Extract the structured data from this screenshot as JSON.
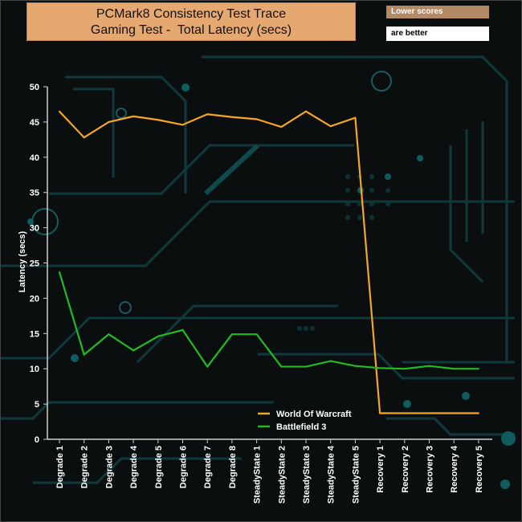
{
  "chart_data": {
    "type": "line",
    "title_line1": "PCMark8 Consistency Test Trace",
    "title_line2": "Gaming Test -  Total Latency (secs)",
    "note_line1": "Lower scores",
    "note_line2": "are better",
    "ylabel": "Latency (secs)",
    "ylim": [
      0,
      50
    ],
    "yticks": [
      0,
      5,
      10,
      15,
      20,
      25,
      30,
      35,
      40,
      45,
      50
    ],
    "categories": [
      "Degrade 1",
      "Degrade 2",
      "Degrade 3",
      "Degrade 4",
      "Degrade 5",
      "Degrade 6",
      "Degrade 7",
      "Degrade 8",
      "SteadyState 1",
      "SteadyState 2",
      "SteadyState 3",
      "SteadyState 4",
      "SteadyState 5",
      "Recovery 1",
      "Recovery 2",
      "Recovery 3",
      "Recovery 4",
      "Recovery 5"
    ],
    "legend_position": "bottom-center",
    "series": [
      {
        "name": "World Of Warcraft",
        "color": "#f5a623",
        "values": [
          46.5,
          42.8,
          45.0,
          45.8,
          45.3,
          44.6,
          46.1,
          45.7,
          45.4,
          44.3,
          46.5,
          44.4,
          45.6,
          3.7,
          3.7,
          3.7,
          3.7,
          3.7
        ]
      },
      {
        "name": "Battlefield 3",
        "color": "#22bb22",
        "values": [
          23.7,
          12.0,
          14.9,
          12.6,
          14.6,
          15.5,
          10.3,
          14.9,
          14.9,
          10.3,
          10.3,
          11.1,
          10.4,
          10.1,
          10.0,
          10.4,
          10.0,
          10.0
        ]
      }
    ]
  }
}
